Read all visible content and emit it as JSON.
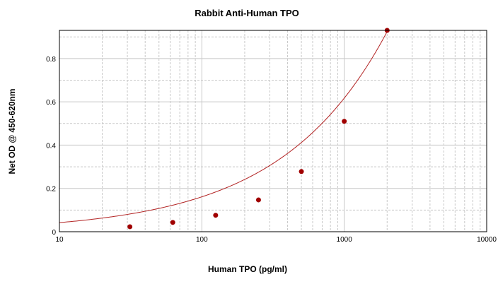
{
  "chart_data": {
    "type": "scatter",
    "title": "Rabbit Anti-Human TPO",
    "xlabel": "Human TPO (pg/ml)",
    "ylabel": "Net OD @ 450-620nm",
    "x_scale": "log",
    "xlim": [
      10,
      10000
    ],
    "ylim": [
      0,
      0.93
    ],
    "x_ticks": [
      10,
      100,
      1000,
      10000
    ],
    "x_tick_labels": [
      "10",
      "100",
      "1000",
      "10000"
    ],
    "y_ticks": [
      0,
      0.2,
      0.4,
      0.6,
      0.8
    ],
    "y_tick_labels": [
      "0",
      "0.2",
      "0.4",
      "0.6",
      "0.8"
    ],
    "grid": true,
    "legend": "none",
    "series": [
      {
        "x": [
          31.25,
          62.5,
          125,
          250,
          500,
          1000,
          2000
        ],
        "y": [
          0.023,
          0.043,
          0.076,
          0.147,
          0.278,
          0.51,
          0.93
        ]
      }
    ],
    "fit_curve": {
      "a": 0.011,
      "b": 0.583
    },
    "colors": {
      "points": "#a00000",
      "curve": "#b22222",
      "grid": "#c8c8c8"
    }
  }
}
